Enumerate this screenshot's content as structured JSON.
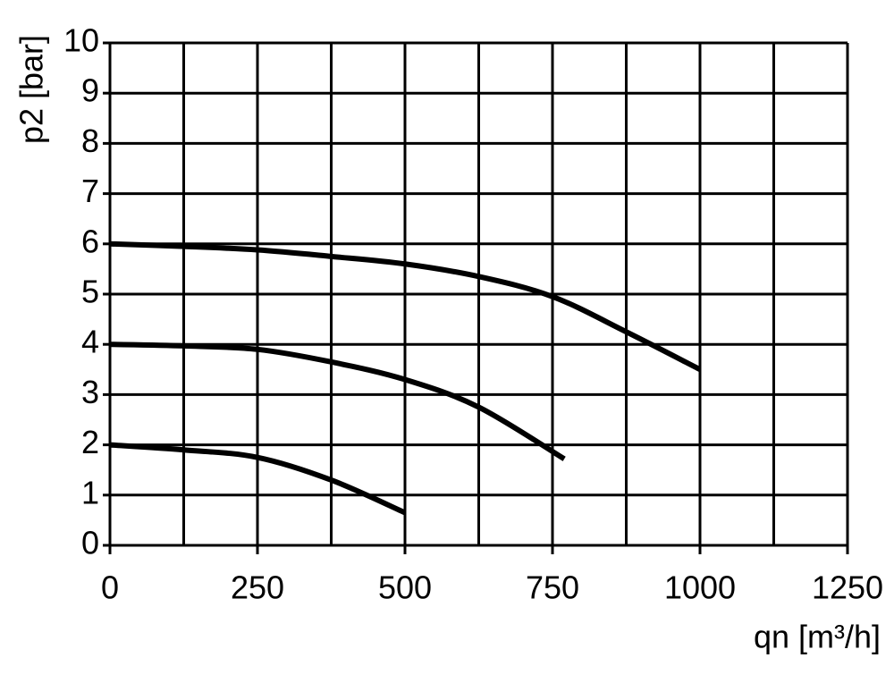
{
  "chart_data": {
    "type": "line",
    "x_label": "qn [m³/h]",
    "y_label": "p2 [bar]",
    "series": [
      {
        "color": "#000000",
        "x": [
          0,
          125,
          250,
          375,
          500,
          625,
          750,
          875,
          1000
        ],
        "values": [
          6.0,
          5.95,
          5.88,
          5.75,
          5.6,
          5.35,
          4.95,
          4.25,
          3.5
        ]
      },
      {
        "color": "#000000",
        "x": [
          0,
          125,
          250,
          375,
          500,
          625,
          770
        ],
        "values": [
          4.0,
          3.97,
          3.9,
          3.65,
          3.3,
          2.75,
          1.72
        ]
      },
      {
        "color": "#000000",
        "x": [
          0,
          125,
          250,
          375,
          500
        ],
        "values": [
          2.0,
          1.9,
          1.75,
          1.3,
          0.65
        ]
      }
    ],
    "xlim": [
      0,
      1250
    ],
    "ylim": [
      0,
      10
    ],
    "xticks": [
      0,
      250,
      500,
      750,
      1000,
      1250
    ],
    "xminor": [
      125,
      375,
      625,
      875,
      1125
    ],
    "yticks": [
      0,
      1,
      2,
      3,
      4,
      5,
      6,
      7,
      8,
      9,
      10
    ],
    "grid": true
  }
}
